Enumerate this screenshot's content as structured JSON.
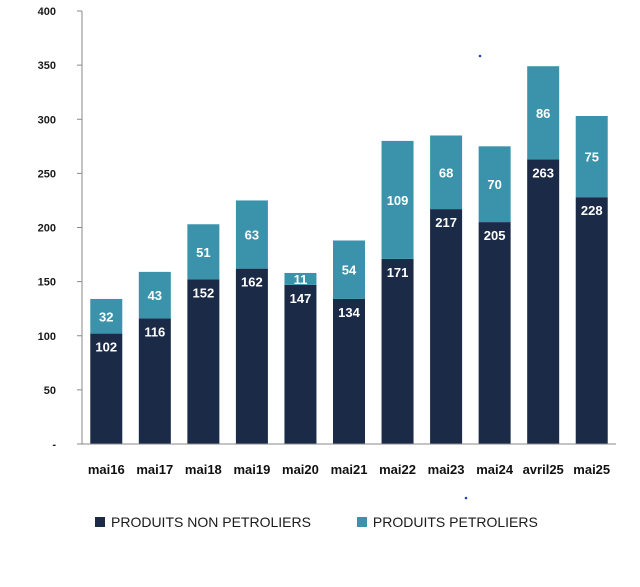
{
  "chart_data": {
    "type": "bar",
    "stacked": true,
    "categories": [
      "mai16",
      "mai17",
      "mai18",
      "mai19",
      "mai20",
      "mai21",
      "mai22",
      "mai23",
      "mai24",
      "avril25",
      "mai25"
    ],
    "series": [
      {
        "name": "PRODUITS NON PETROLIERS",
        "color": "#1b2a47",
        "values": [
          102,
          116,
          152,
          162,
          147,
          134,
          171,
          217,
          205,
          263,
          228
        ]
      },
      {
        "name": "PRODUITS PETROLIERS",
        "color": "#3a93ab",
        "values": [
          32,
          43,
          51,
          63,
          11,
          54,
          109,
          68,
          70,
          86,
          75
        ]
      }
    ],
    "ylim": [
      0,
      400
    ],
    "yticks": [
      {
        "value": 0,
        "label": "-"
      },
      {
        "value": 50,
        "label": "50"
      },
      {
        "value": 100,
        "label": "100"
      },
      {
        "value": 150,
        "label": "150"
      },
      {
        "value": 200,
        "label": "200"
      },
      {
        "value": 250,
        "label": "250"
      },
      {
        "value": 300,
        "label": "300"
      },
      {
        "value": 350,
        "label": "350"
      },
      {
        "value": 400,
        "label": "400"
      }
    ],
    "grid": false,
    "legend_position": "bottom",
    "data_labels": true
  }
}
